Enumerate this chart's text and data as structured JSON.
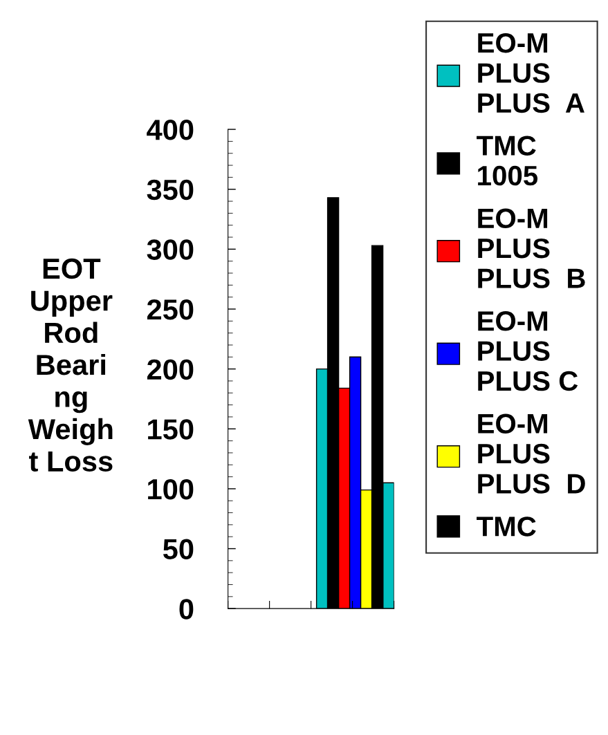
{
  "chart_data": {
    "type": "bar",
    "ylabel": "EOT\nUpper\nRod\nBeari\nng\nWeigh\nt Loss",
    "categories": [
      null,
      null,
      null,
      null,
      null,
      null,
      null,
      null,
      null,
      null,
      null,
      null,
      null,
      null,
      null
    ],
    "series": [
      {
        "name": "EO-M\nPLUS\nPLUS  A",
        "color": "#00c0c0",
        "values": [
          null,
          null,
          null,
          null,
          null,
          null,
          null,
          null,
          200,
          null,
          null,
          null,
          null,
          null,
          105
        ]
      },
      {
        "name": "TMC\n1005",
        "color": "#000000",
        "values": [
          null,
          null,
          null,
          null,
          null,
          null,
          null,
          null,
          null,
          343,
          null,
          null,
          null,
          null,
          null
        ]
      },
      {
        "name": "EO-M\nPLUS\nPLUS  B",
        "color": "#ff0000",
        "values": [
          null,
          null,
          null,
          null,
          null,
          null,
          null,
          null,
          null,
          null,
          184,
          null,
          null,
          null,
          null
        ]
      },
      {
        "name": "EO-M\nPLUS\nPLUS C",
        "color": "#0000ff",
        "values": [
          null,
          null,
          null,
          null,
          null,
          null,
          null,
          null,
          null,
          null,
          null,
          210,
          null,
          null,
          null
        ]
      },
      {
        "name": "EO-M\nPLUS\nPLUS  D",
        "color": "#ffff00",
        "values": [
          null,
          null,
          null,
          null,
          null,
          null,
          null,
          null,
          null,
          null,
          null,
          null,
          99,
          null,
          null
        ]
      },
      {
        "name": "TMC",
        "color": "#000000",
        "values": [
          null,
          null,
          null,
          null,
          null,
          null,
          null,
          null,
          null,
          null,
          null,
          null,
          null,
          303,
          null
        ]
      }
    ],
    "ylim": [
      0,
      400
    ],
    "yticks": [
      0,
      50,
      100,
      150,
      200,
      250,
      300,
      350,
      400
    ],
    "grid": false,
    "legend": "right"
  }
}
